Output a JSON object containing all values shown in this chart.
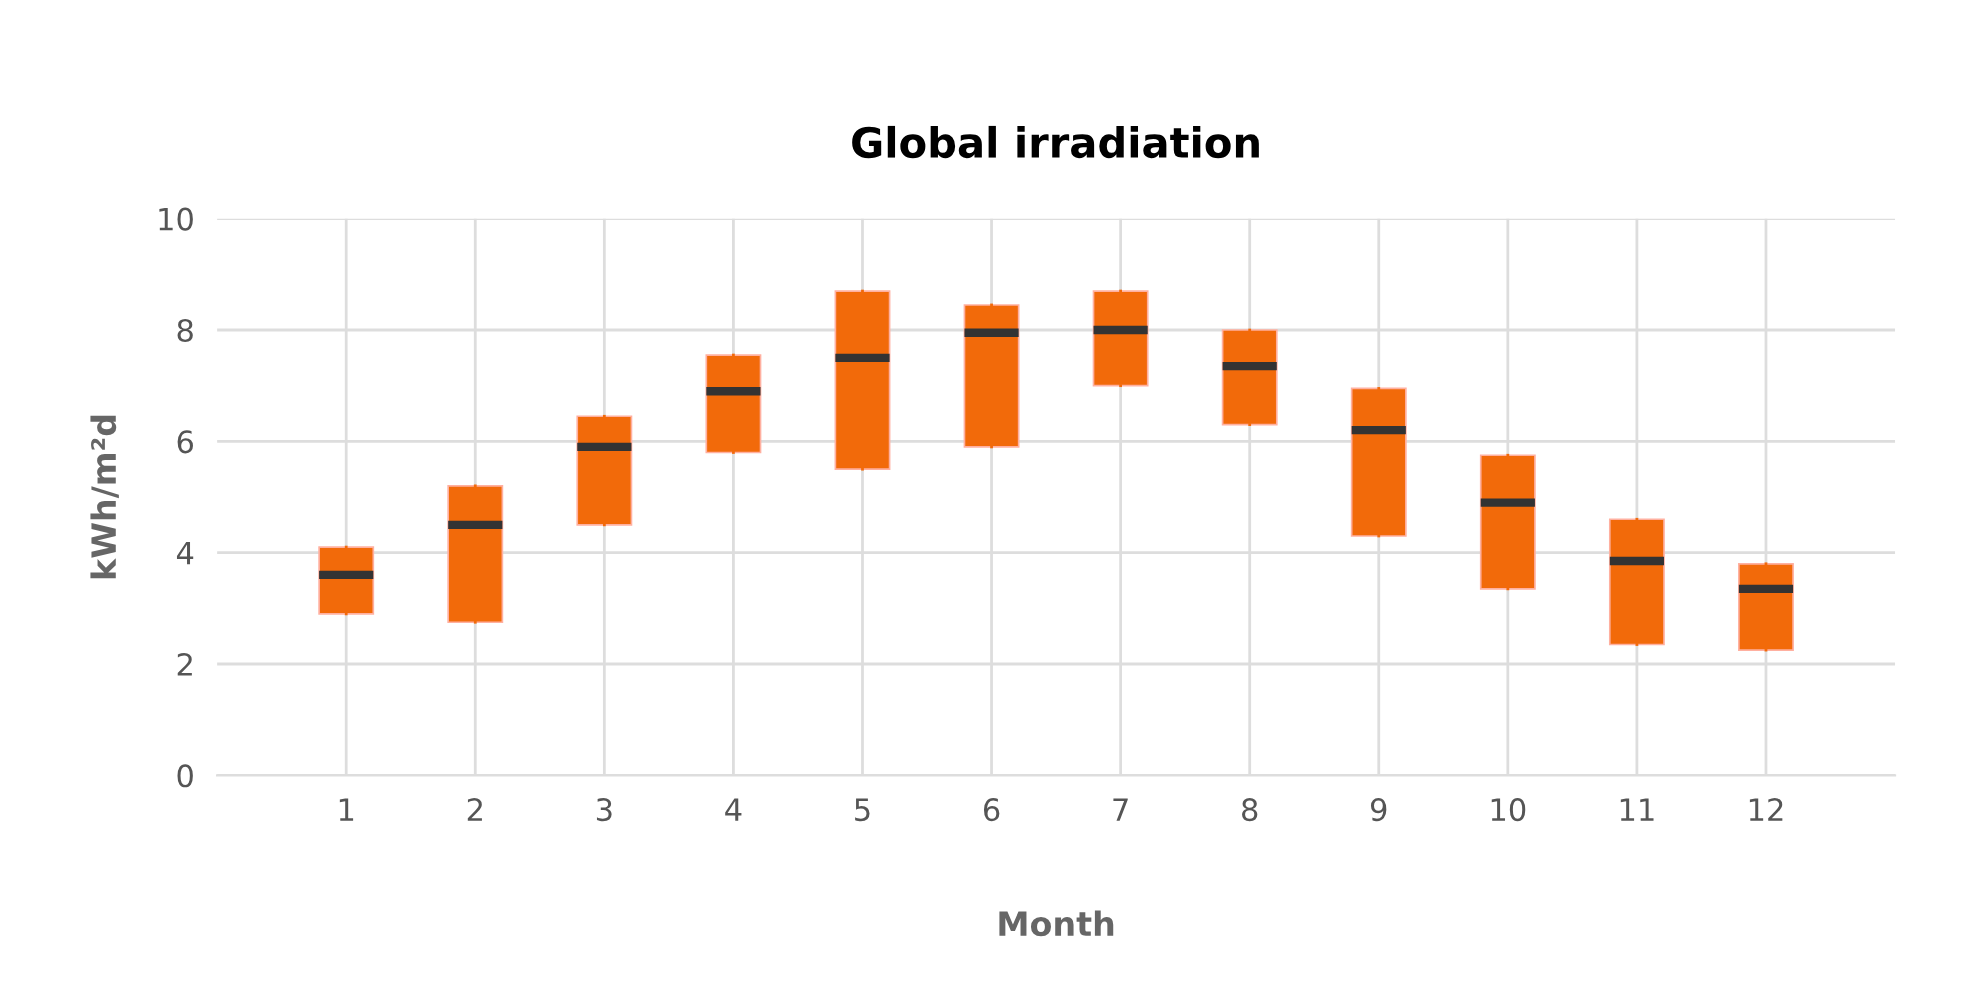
{
  "chart_data": {
    "type": "box",
    "title": "Global irradiation",
    "xlabel": "Month",
    "ylabel": "kWh/m²d",
    "categories": [
      "1",
      "2",
      "3",
      "4",
      "5",
      "6",
      "7",
      "8",
      "9",
      "10",
      "11",
      "12"
    ],
    "series": [
      {
        "color": "#f26a0a",
        "boxes": [
          {
            "low": 2.9,
            "q1": 2.9,
            "median": 3.6,
            "q3": 4.1,
            "high": 4.1
          },
          {
            "low": 2.75,
            "q1": 2.75,
            "median": 4.5,
            "q3": 5.2,
            "high": 5.2
          },
          {
            "low": 4.5,
            "q1": 4.5,
            "median": 5.9,
            "q3": 6.45,
            "high": 6.45
          },
          {
            "low": 5.8,
            "q1": 5.8,
            "median": 6.9,
            "q3": 7.55,
            "high": 7.55
          },
          {
            "low": 5.5,
            "q1": 5.5,
            "median": 7.5,
            "q3": 8.7,
            "high": 8.7
          },
          {
            "low": 5.9,
            "q1": 5.9,
            "median": 7.95,
            "q3": 8.45,
            "high": 8.45
          },
          {
            "low": 7.0,
            "q1": 7.0,
            "median": 8.0,
            "q3": 8.7,
            "high": 8.7
          },
          {
            "low": 6.3,
            "q1": 6.3,
            "median": 7.35,
            "q3": 8.0,
            "high": 8.0
          },
          {
            "low": 4.3,
            "q1": 4.3,
            "median": 6.2,
            "q3": 6.95,
            "high": 6.95
          },
          {
            "low": 3.35,
            "q1": 3.35,
            "median": 4.9,
            "q3": 5.75,
            "high": 5.75
          },
          {
            "low": 2.35,
            "q1": 2.35,
            "median": 3.85,
            "q3": 4.6,
            "high": 4.6
          },
          {
            "low": 2.25,
            "q1": 2.25,
            "median": 3.35,
            "q3": 3.8,
            "high": 3.8
          }
        ]
      }
    ],
    "ylim": [
      0,
      10
    ],
    "yticks": [
      0,
      2,
      4,
      6,
      8,
      10
    ],
    "grid": true
  }
}
